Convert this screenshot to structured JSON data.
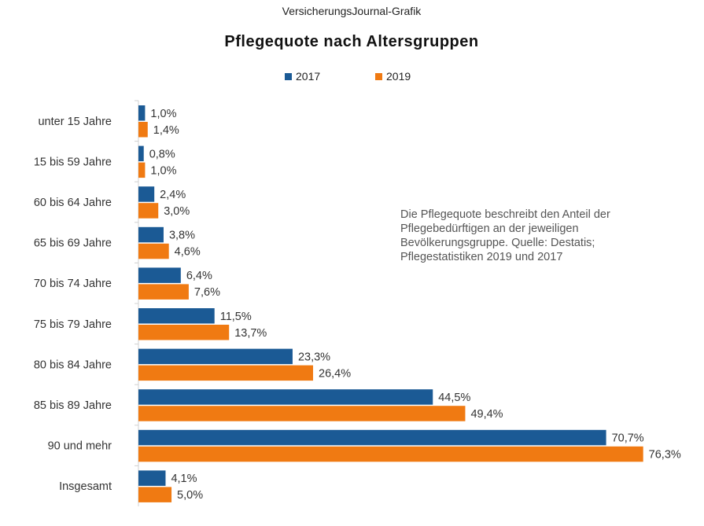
{
  "chart_data": {
    "type": "bar",
    "orientation": "horizontal",
    "supertitle": "VersicherungsJournal-Grafik",
    "title": "Pflegequote nach Altersgruppen",
    "categories": [
      "unter 15 Jahre",
      "15 bis 59 Jahre",
      "60 bis 64 Jahre",
      "65 bis 69 Jahre",
      "70 bis 74 Jahre",
      "75 bis 79 Jahre",
      "80 bis 84 Jahre",
      "85 bis 89 Jahre",
      "90 und mehr",
      "Insgesamt"
    ],
    "series": [
      {
        "name": "2017",
        "color": "#1b5a95",
        "values": [
          1.0,
          0.8,
          2.4,
          3.8,
          6.4,
          11.5,
          23.3,
          44.5,
          70.7,
          4.1
        ],
        "labels": [
          "1,0%",
          "0,8%",
          "2,4%",
          "3,8%",
          "6,4%",
          "11,5%",
          "23,3%",
          "44,5%",
          "70,7%",
          "4,1%"
        ]
      },
      {
        "name": "2019",
        "color": "#f07a12",
        "values": [
          1.4,
          1.0,
          3.0,
          4.6,
          7.6,
          13.7,
          26.4,
          49.4,
          76.3,
          5.0
        ],
        "labels": [
          "1,4%",
          "1,0%",
          "3,0%",
          "4,6%",
          "7,6%",
          "13,7%",
          "26,4%",
          "49,4%",
          "76,3%",
          "5,0%"
        ]
      }
    ],
    "unit": "%",
    "xlim": [
      0,
      85
    ],
    "grid": false,
    "legend_position": "top",
    "annotation": "Die Pflegequote beschreibt den Anteil der Pflegebedürftigen an der jeweiligen Bevölkerungsgruppe. Quelle: Destatis; Pflegestatistiken 2019 und 2017"
  }
}
